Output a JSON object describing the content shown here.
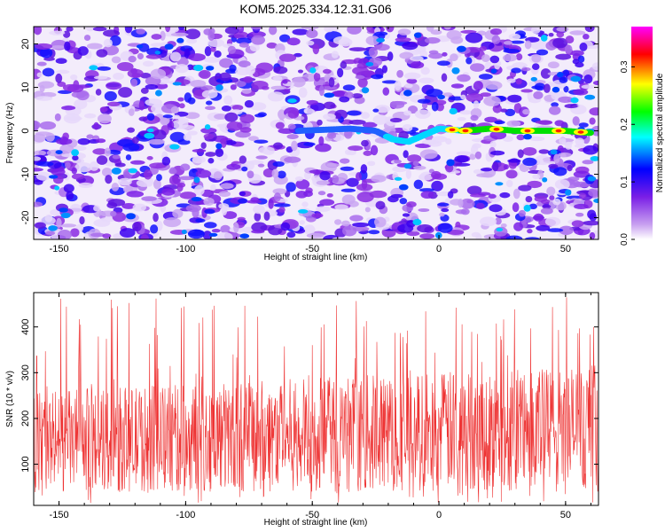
{
  "title": "KOM5.2025.334.12.31.G06",
  "chart_data": [
    {
      "type": "heatmap",
      "xlabel": "Height of straight line (km)",
      "ylabel": "Frequency (Hz)",
      "xlim": [
        -160,
        63
      ],
      "ylim": [
        -25,
        24
      ],
      "x_ticks": [
        -150,
        -100,
        -50,
        0,
        50
      ],
      "y_ticks": [
        -20,
        -10,
        0,
        10,
        20
      ],
      "colorbar": {
        "label": "Normalized spectral amplitude",
        "range": [
          0.0,
          0.37
        ],
        "ticks": [
          0.0,
          0.1,
          0.2,
          0.3
        ],
        "tick_labels": [
          "0.0",
          "0.1",
          "0.2",
          "0.3"
        ],
        "colors": [
          "#ffffff",
          "#8a2be2",
          "#0000ff",
          "#00ffff",
          "#00ff00",
          "#ffff00",
          "#ff0000",
          "#ff00ff"
        ]
      },
      "signal_track": {
        "x": [
          -55,
          -35,
          -25,
          -18,
          -12,
          -6,
          0,
          10,
          20,
          30,
          40,
          50,
          60
        ],
        "y": [
          0,
          0.5,
          0,
          -2,
          -2.5,
          -1,
          0.5,
          0,
          0.5,
          0,
          0,
          0,
          -0.5
        ],
        "peak_amplitude": 0.37
      }
    },
    {
      "type": "line",
      "xlabel": "Height of straight line (km)",
      "ylabel": "SNR (10 * v/v)",
      "xlim": [
        -160,
        63
      ],
      "ylim": [
        10,
        475
      ],
      "x_ticks": [
        -150,
        -100,
        -50,
        0,
        50
      ],
      "y_ticks": [
        100,
        200,
        300,
        400
      ],
      "color": "#ee3333",
      "baseline_range": [
        40,
        260
      ],
      "peak_max": 475
    }
  ]
}
